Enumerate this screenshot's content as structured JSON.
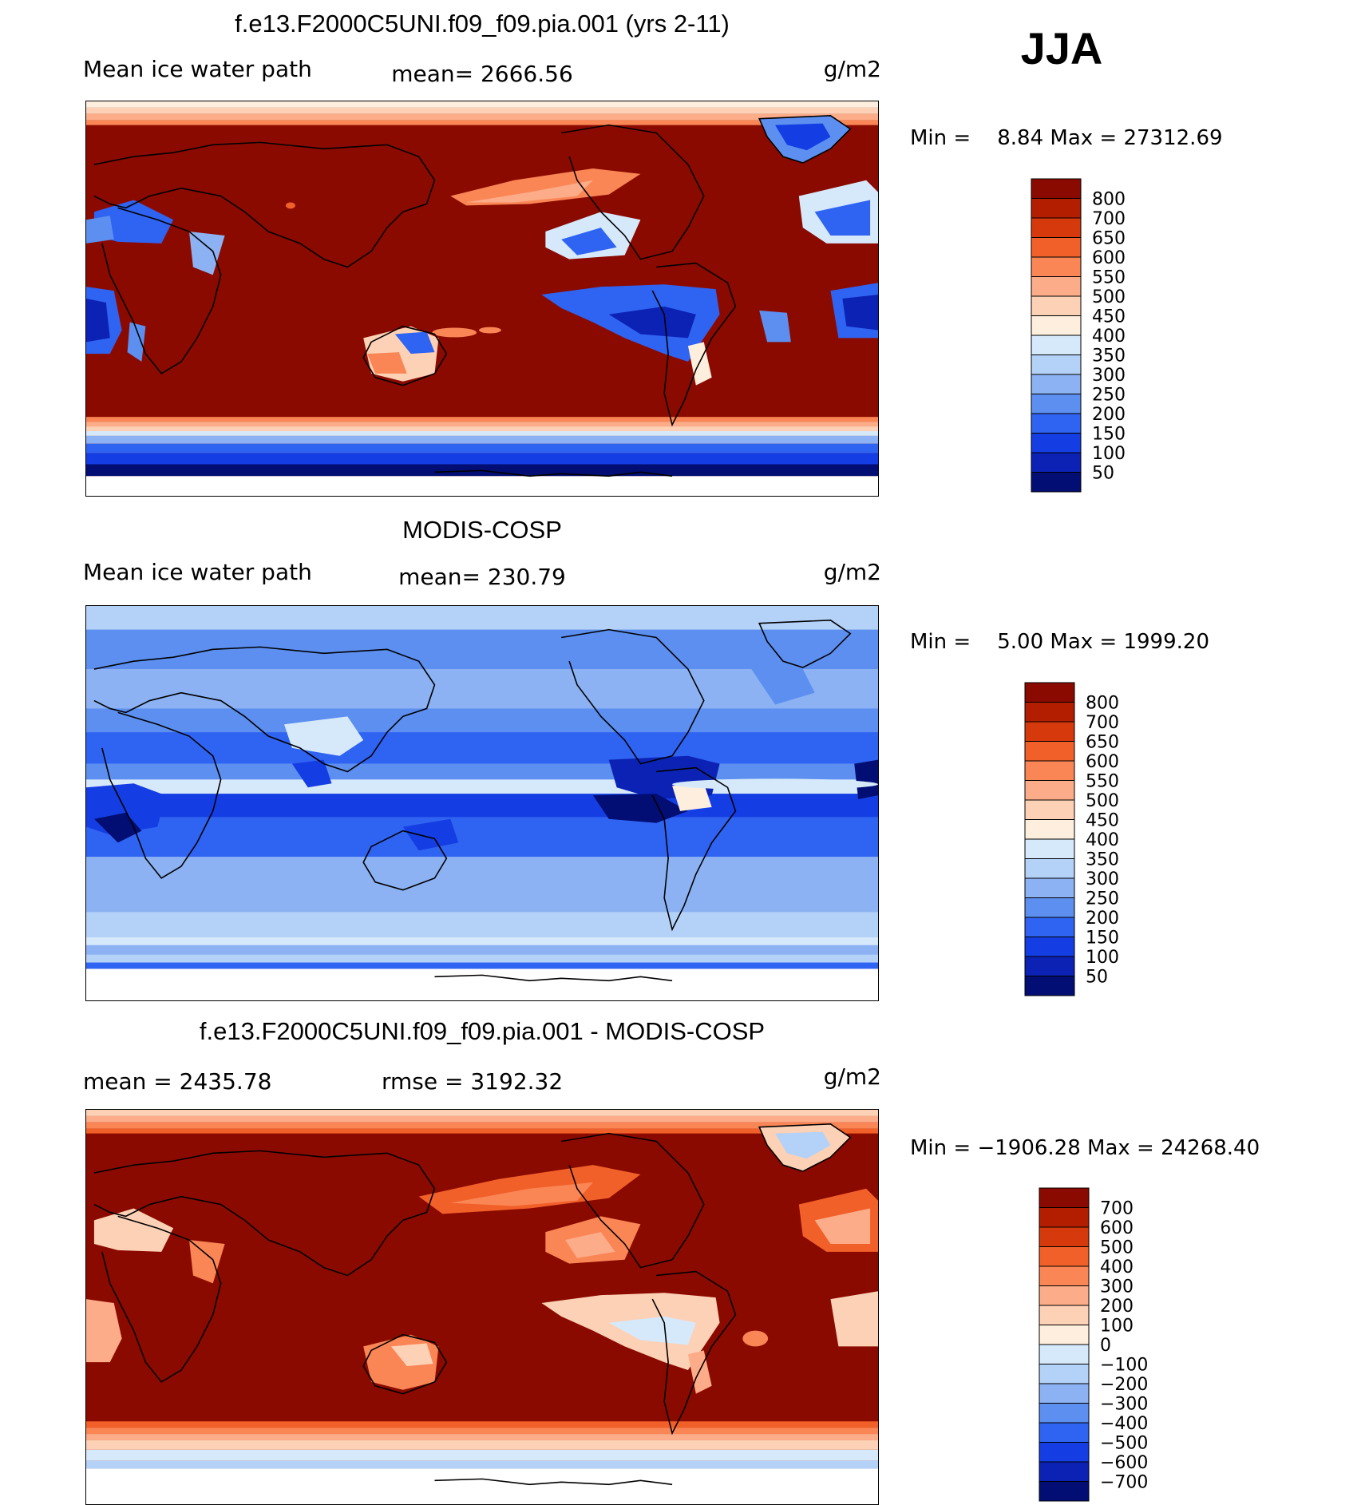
{
  "season": "JJA",
  "panels": [
    {
      "title": "f.e13.F2000C5UNI.f09_f09.pia.001 (yrs 2-11)",
      "left_label": "Mean ice water path",
      "center_label": "mean= 2666.56",
      "units": "g/m2",
      "minmax": "Min =    8.84 Max = 27312.69",
      "colorbar": {
        "labels": [
          "800",
          "700",
          "650",
          "600",
          "550",
          "500",
          "450",
          "400",
          "350",
          "300",
          "250",
          "200",
          "150",
          "100",
          "50"
        ],
        "colors": [
          "#8b0a00",
          "#b41e00",
          "#d63a0c",
          "#f2602a",
          "#fa8656",
          "#fcac88",
          "#fdd1b6",
          "#fdeedd",
          "#d6e9fb",
          "#b4d1f7",
          "#8cb2f3",
          "#5c8ff0",
          "#2f63f2",
          "#143ee3",
          "#0c22b4",
          "#020e73"
        ]
      },
      "field": "model"
    },
    {
      "title": "MODIS-COSP",
      "left_label": "Mean ice water path",
      "center_label": "mean= 230.79",
      "units": "g/m2",
      "minmax": "Min =    5.00 Max = 1999.20",
      "colorbar": {
        "labels": [
          "800",
          "700",
          "650",
          "600",
          "550",
          "500",
          "450",
          "400",
          "350",
          "300",
          "250",
          "200",
          "150",
          "100",
          "50"
        ],
        "colors": [
          "#8b0a00",
          "#b41e00",
          "#d63a0c",
          "#f2602a",
          "#fa8656",
          "#fcac88",
          "#fdd1b6",
          "#fdeedd",
          "#d6e9fb",
          "#b4d1f7",
          "#8cb2f3",
          "#5c8ff0",
          "#2f63f2",
          "#143ee3",
          "#0c22b4",
          "#020e73"
        ]
      },
      "field": "obs"
    },
    {
      "title": "f.e13.F2000C5UNI.f09_f09.pia.001 - MODIS-COSP",
      "left_label": "mean = 2435.78",
      "center_label": "rmse = 3192.32",
      "units": "g/m2",
      "minmax": "Min = −1906.28 Max = 24268.40",
      "colorbar": {
        "labels": [
          "700",
          "600",
          "500",
          "400",
          "300",
          "200",
          "100",
          "0",
          "−100",
          "−200",
          "−300",
          "−400",
          "−500",
          "−600",
          "−700"
        ],
        "colors": [
          "#8b0a00",
          "#b41e00",
          "#d63a0c",
          "#f2602a",
          "#fa8656",
          "#fcac88",
          "#fdd1b6",
          "#fdeedd",
          "#d6e9fb",
          "#b4d1f7",
          "#8cb2f3",
          "#5c8ff0",
          "#2f63f2",
          "#143ee3",
          "#0c22b4",
          "#020e73"
        ]
      },
      "field": "diff"
    }
  ]
}
